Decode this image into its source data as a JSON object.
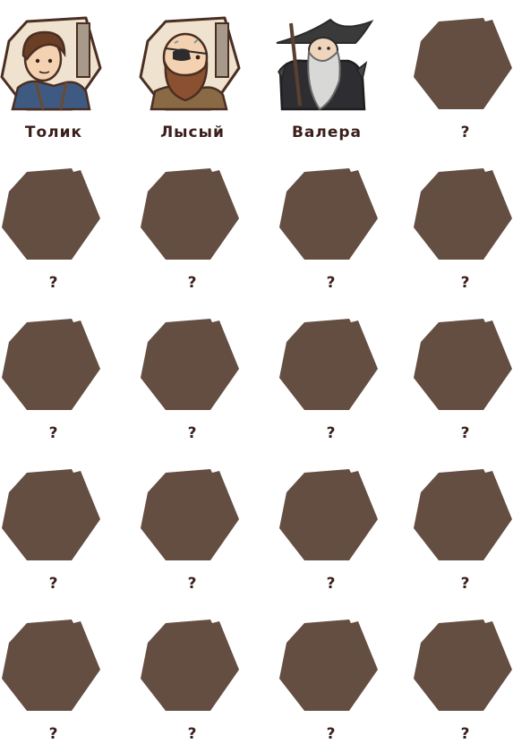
{
  "colors": {
    "locked": "#644e42",
    "text": "#3a1e1a",
    "outline": "#4a2e22"
  },
  "characters": [
    {
      "name": "Толик",
      "unlocked": true,
      "icon": "young-man-portrait-icon"
    },
    {
      "name": "Лысый",
      "unlocked": true,
      "icon": "bald-eyepatch-portrait-icon"
    },
    {
      "name": "Валера",
      "unlocked": true,
      "icon": "wizard-portrait-icon"
    },
    {
      "name": "?",
      "unlocked": false,
      "icon": "locked-portrait-icon"
    },
    {
      "name": "?",
      "unlocked": false,
      "icon": "locked-portrait-icon"
    },
    {
      "name": "?",
      "unlocked": false,
      "icon": "locked-portrait-icon"
    },
    {
      "name": "?",
      "unlocked": false,
      "icon": "locked-portrait-icon"
    },
    {
      "name": "?",
      "unlocked": false,
      "icon": "locked-portrait-icon"
    },
    {
      "name": "?",
      "unlocked": false,
      "icon": "locked-portrait-icon"
    },
    {
      "name": "?",
      "unlocked": false,
      "icon": "locked-portrait-icon"
    },
    {
      "name": "?",
      "unlocked": false,
      "icon": "locked-portrait-icon"
    },
    {
      "name": "?",
      "unlocked": false,
      "icon": "locked-portrait-icon"
    },
    {
      "name": "?",
      "unlocked": false,
      "icon": "locked-portrait-icon"
    },
    {
      "name": "?",
      "unlocked": false,
      "icon": "locked-portrait-icon"
    },
    {
      "name": "?",
      "unlocked": false,
      "icon": "locked-portrait-icon"
    },
    {
      "name": "?",
      "unlocked": false,
      "icon": "locked-portrait-icon"
    },
    {
      "name": "?",
      "unlocked": false,
      "icon": "locked-portrait-icon"
    },
    {
      "name": "?",
      "unlocked": false,
      "icon": "locked-portrait-icon"
    },
    {
      "name": "?",
      "unlocked": false,
      "icon": "locked-portrait-icon"
    },
    {
      "name": "?",
      "unlocked": false,
      "icon": "locked-portrait-icon"
    }
  ]
}
